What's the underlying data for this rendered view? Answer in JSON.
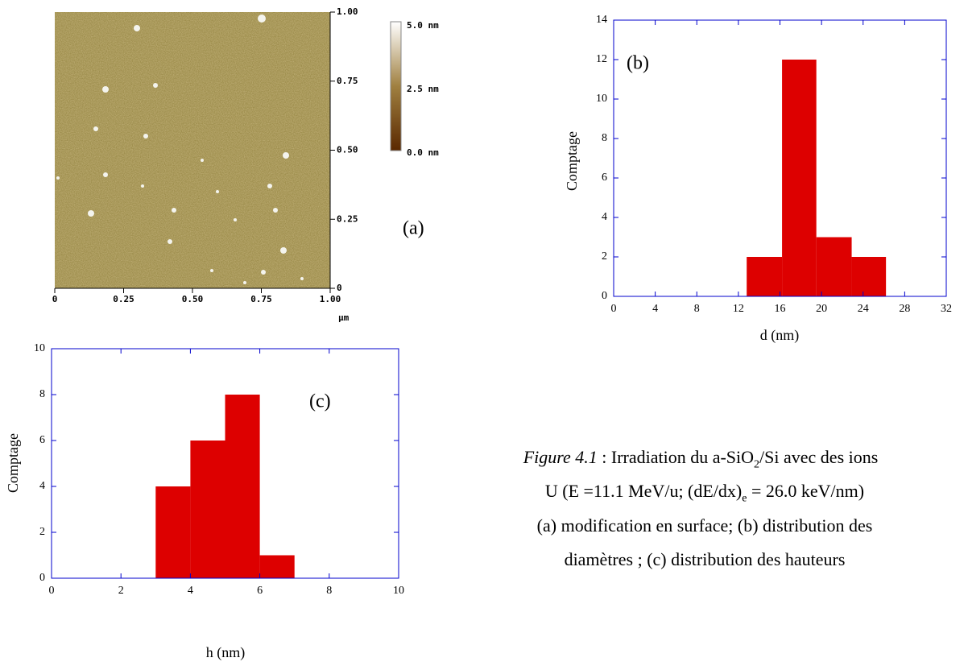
{
  "afm_image": {
    "label": "(a)",
    "yticks": [
      "1.00",
      "0.75",
      "0.50",
      "0.25",
      "0"
    ],
    "xticks": [
      "0",
      "0.25",
      "0.50",
      "0.75",
      "1.00"
    ],
    "xunit": "μm",
    "colorbar": [
      "5.0 nm",
      "2.5 nm",
      "0.0 nm"
    ]
  },
  "chart_data": [
    {
      "type": "histogram",
      "annotation": "(b)",
      "ylabel": "Comptage",
      "xlabel": "d (nm)",
      "bins": [
        12.8,
        16.2,
        19.5,
        22.9,
        26.2
      ],
      "values": [
        2,
        12,
        3,
        2
      ],
      "color": "#dd0000",
      "xlim": [
        0,
        32
      ],
      "xticks": [
        0,
        4,
        8,
        12,
        16,
        20,
        24,
        28,
        32
      ],
      "ylim": [
        0,
        14
      ],
      "yticks": [
        0,
        2,
        4,
        6,
        8,
        10,
        12,
        14
      ]
    },
    {
      "type": "histogram",
      "annotation": "(c)",
      "ylabel": "Comptage",
      "xlabel": "h (nm)",
      "bins": [
        3,
        4,
        5,
        6,
        7
      ],
      "values": [
        4,
        6,
        8,
        1
      ],
      "color": "#dd0000",
      "xlim": [
        0,
        10
      ],
      "xticks": [
        0,
        2,
        4,
        6,
        8,
        10
      ],
      "ylim": [
        0,
        10
      ],
      "yticks": [
        0,
        2,
        4,
        6,
        8,
        10
      ]
    }
  ],
  "caption": {
    "lines": [
      [
        "Figure 4.1",
        " : Irradiation du a-SiO",
        "2",
        "/Si avec des ions"
      ],
      [
        "U (E =11.1 MeV/u; (dE/dx)",
        "e",
        " = 26.0 keV/nm)"
      ],
      [
        "(a) modification en surface; (b) distribution des"
      ],
      [
        "diamètres ; (c) distribution des hauteurs"
      ]
    ]
  }
}
